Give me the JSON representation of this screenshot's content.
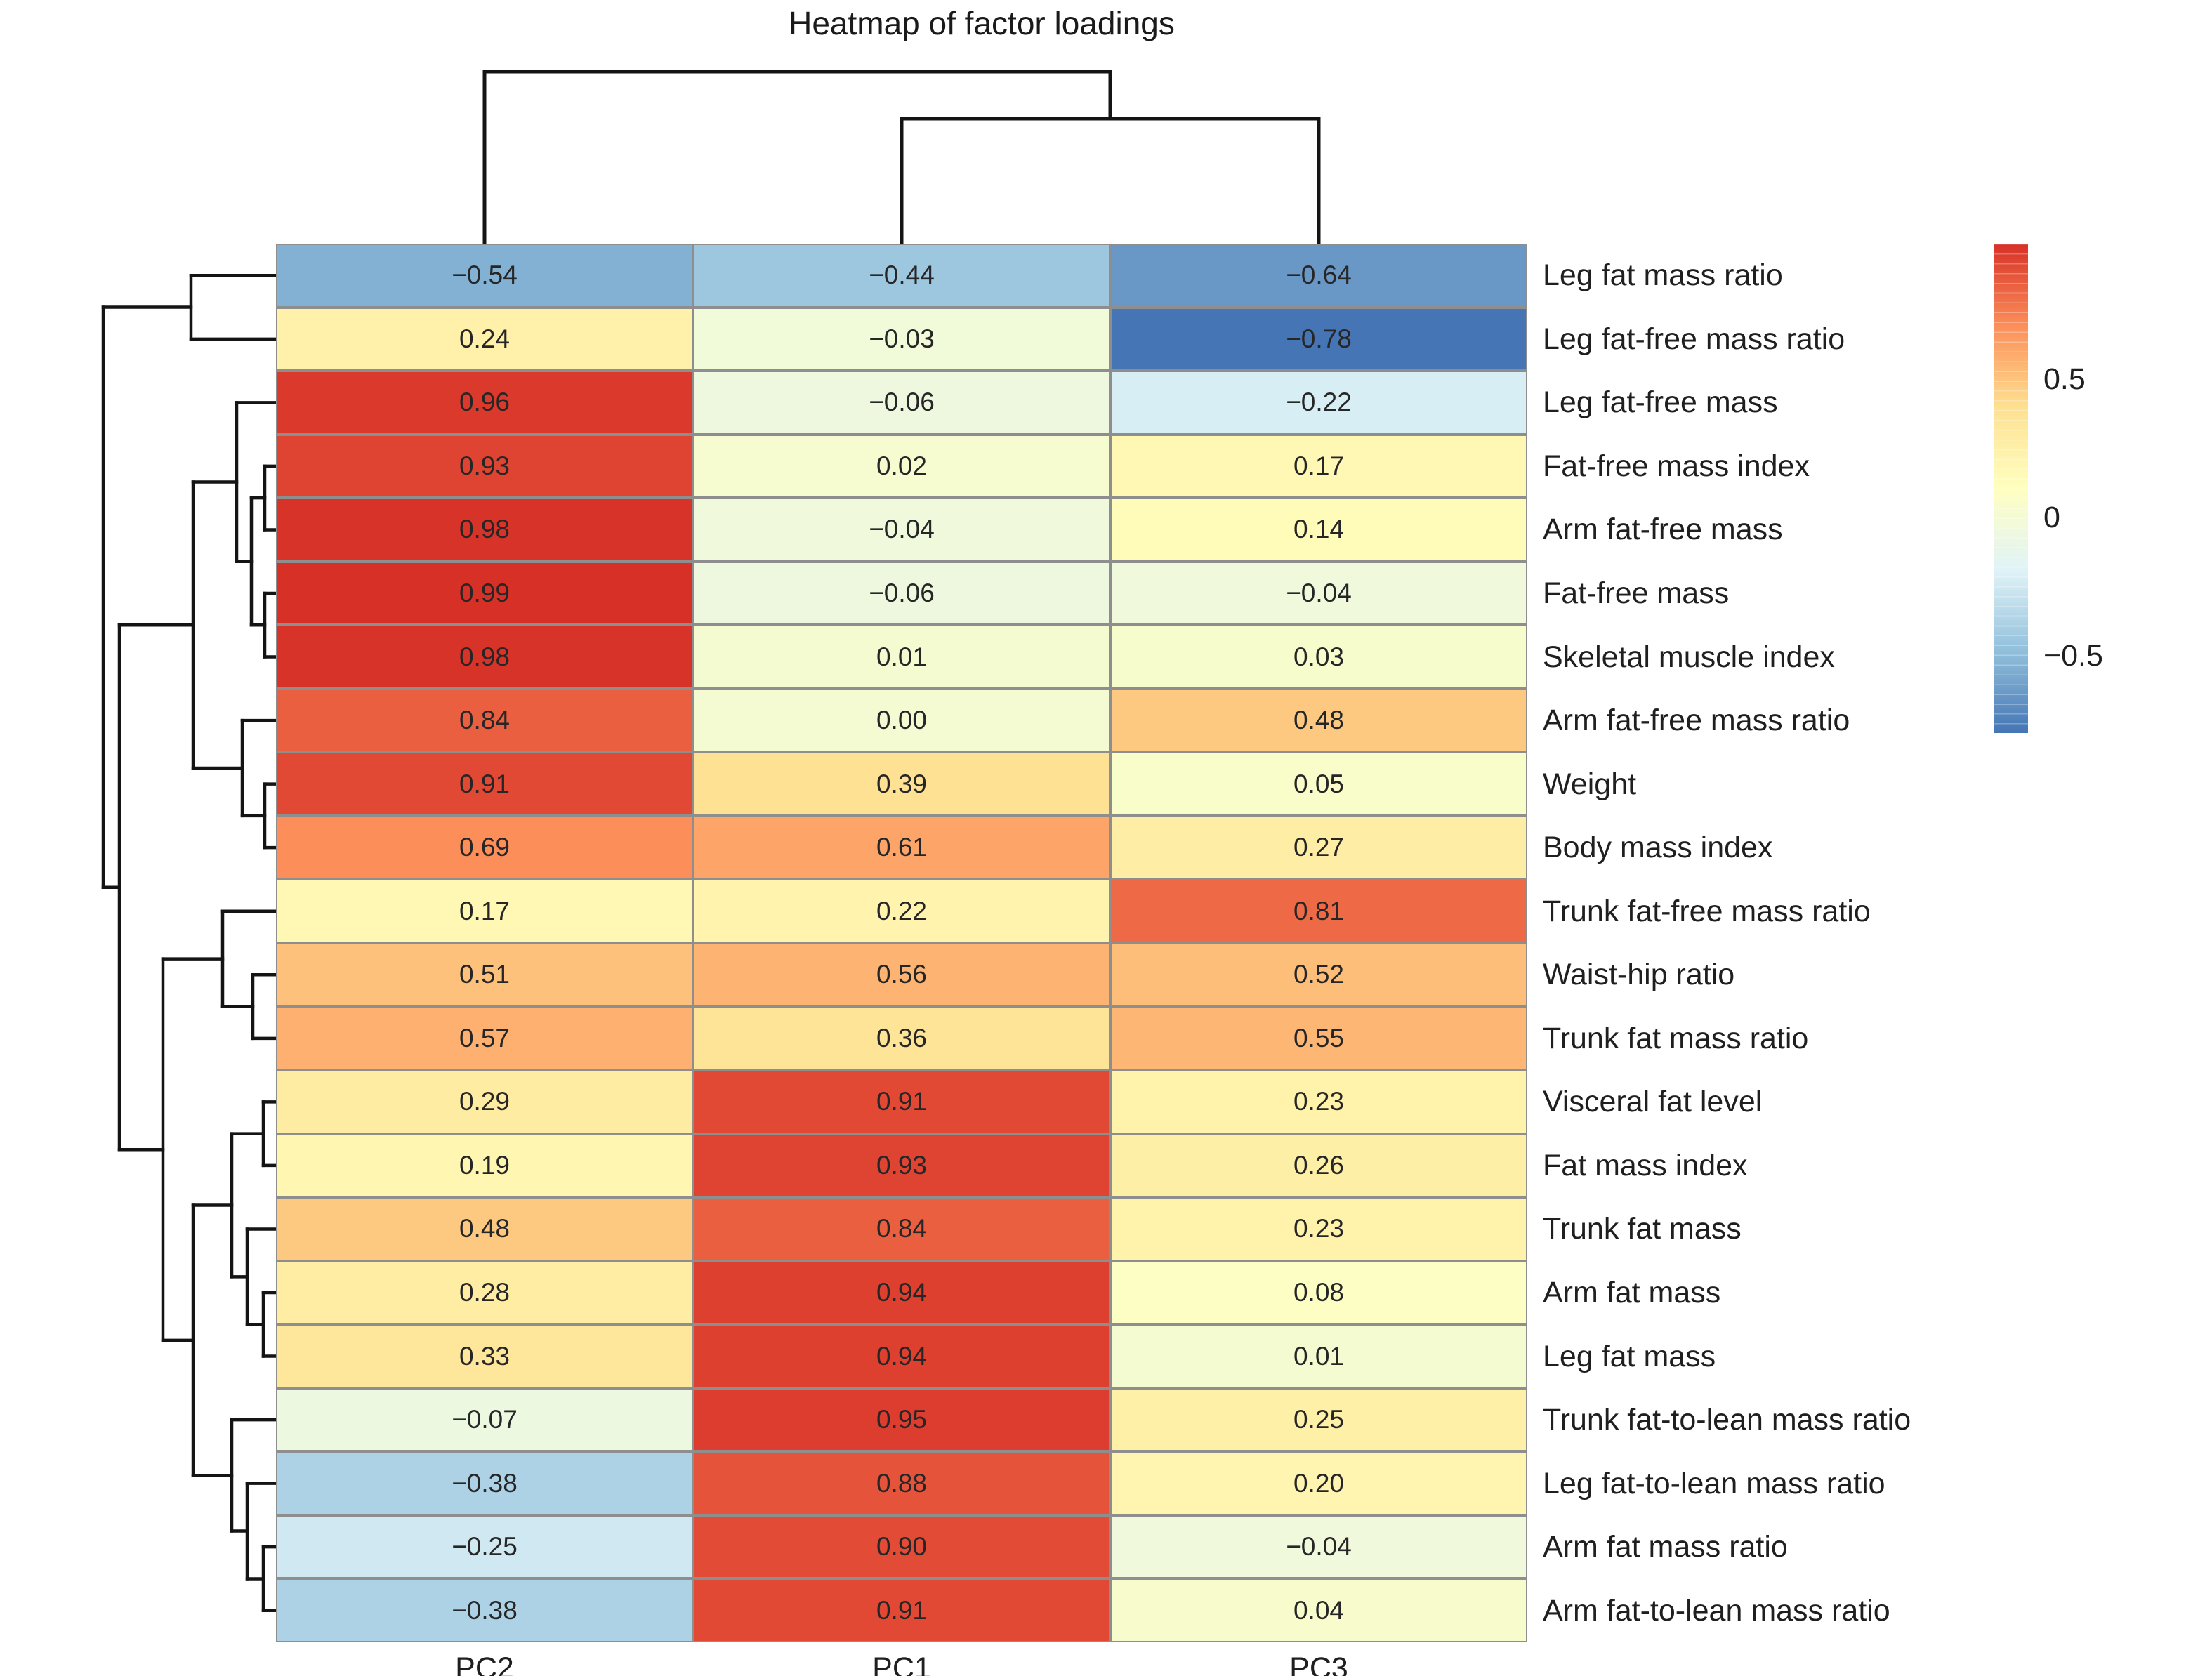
{
  "title": "Heatmap of factor loadings",
  "chart_data": {
    "type": "heatmap",
    "title": "Heatmap of factor loadings",
    "columns": [
      "PC2",
      "PC1",
      "PC3"
    ],
    "rows": [
      {
        "label": "Leg fat mass ratio",
        "values": [
          -0.54,
          -0.44,
          -0.64
        ]
      },
      {
        "label": "Leg fat-free mass ratio",
        "values": [
          0.24,
          -0.03,
          -0.78
        ]
      },
      {
        "label": "Leg fat-free mass",
        "values": [
          0.96,
          -0.06,
          -0.22
        ]
      },
      {
        "label": "Fat-free mass index",
        "values": [
          0.93,
          0.02,
          0.17
        ]
      },
      {
        "label": "Arm fat-free mass",
        "values": [
          0.98,
          -0.04,
          0.14
        ]
      },
      {
        "label": "Fat-free mass",
        "values": [
          0.99,
          -0.06,
          -0.04
        ]
      },
      {
        "label": "Skeletal muscle index",
        "values": [
          0.98,
          0.01,
          0.03
        ]
      },
      {
        "label": "Arm fat-free mass ratio",
        "values": [
          0.84,
          0.0,
          0.48
        ]
      },
      {
        "label": "Weight",
        "values": [
          0.91,
          0.39,
          0.05
        ]
      },
      {
        "label": "Body mass index",
        "values": [
          0.69,
          0.61,
          0.27
        ]
      },
      {
        "label": "Trunk fat-free mass ratio",
        "values": [
          0.17,
          0.22,
          0.81
        ]
      },
      {
        "label": "Waist-hip ratio",
        "values": [
          0.51,
          0.56,
          0.52
        ]
      },
      {
        "label": "Trunk fat mass ratio",
        "values": [
          0.57,
          0.36,
          0.55
        ]
      },
      {
        "label": "Visceral fat level",
        "values": [
          0.29,
          0.91,
          0.23
        ]
      },
      {
        "label": "Fat mass index",
        "values": [
          0.19,
          0.93,
          0.26
        ]
      },
      {
        "label": "Trunk fat mass",
        "values": [
          0.48,
          0.84,
          0.23
        ]
      },
      {
        "label": "Arm fat mass",
        "values": [
          0.28,
          0.94,
          0.08
        ]
      },
      {
        "label": "Leg fat mass",
        "values": [
          0.33,
          0.94,
          0.01
        ]
      },
      {
        "label": "Trunk fat-to-lean mass ratio",
        "values": [
          -0.07,
          0.95,
          0.25
        ]
      },
      {
        "label": "Leg fat-to-lean mass ratio",
        "values": [
          -0.38,
          0.88,
          0.2
        ]
      },
      {
        "label": "Arm fat mass ratio",
        "values": [
          -0.25,
          0.9,
          -0.04
        ]
      },
      {
        "label": "Arm fat-to-lean mass ratio",
        "values": [
          -0.38,
          0.91,
          0.04
        ]
      }
    ],
    "colormap": {
      "description": "RdYlBu reversed, 7-class interpolated (pheatmap default)",
      "palette": [
        "#4575b4",
        "#91bfdb",
        "#e0f3f8",
        "#ffffbf",
        "#fee090",
        "#fc8d59",
        "#d73027"
      ],
      "vmin": -0.78,
      "vmax": 0.99
    },
    "colorbar": {
      "position": "right",
      "ticks": [
        {
          "label": "0.5",
          "value": 0.5
        },
        {
          "label": "0",
          "value": 0
        },
        {
          "label": "−0.5",
          "value": -0.5
        }
      ]
    },
    "grid": {
      "cell_border_color": "#8e8e8e",
      "value_text_color": "#262626"
    },
    "col_dendrogram": {
      "d": 102,
      "c": [
        0,
        {
          "d": 169,
          "c": [
            1,
            2
          ]
        }
      ]
    },
    "row_dendrogram": {
      "d": 147,
      "c": [
        {
          "d": 272,
          "c": [
            0,
            1
          ]
        },
        {
          "d": 170,
          "c": [
            {
              "d": 275,
              "c": [
                {
                  "d": 337,
                  "c": [
                    2,
                    {
                      "d": 358,
                      "c": [
                        {
                          "d": 377,
                          "c": [
                            3,
                            4
                          ]
                        },
                        {
                          "d": 377,
                          "c": [
                            5,
                            6
                          ]
                        }
                      ]
                    }
                  ]
                },
                {
                  "d": 345,
                  "c": [
                    7,
                    {
                      "d": 377,
                      "c": [
                        8,
                        9
                      ]
                    }
                  ]
                }
              ]
            },
            {
              "d": 232,
              "c": [
                {
                  "d": 317,
                  "c": [
                    10,
                    {
                      "d": 360,
                      "c": [
                        11,
                        12
                      ]
                    }
                  ]
                },
                {
                  "d": 275,
                  "c": [
                    {
                      "d": 330,
                      "c": [
                        {
                          "d": 375,
                          "c": [
                            13,
                            14
                          ]
                        },
                        {
                          "d": 352,
                          "c": [
                            15,
                            {
                              "d": 375,
                              "c": [
                                16,
                                17
                              ]
                            }
                          ]
                        }
                      ]
                    },
                    {
                      "d": 330,
                      "c": [
                        18,
                        {
                          "d": 352,
                          "c": [
                            19,
                            {
                              "d": 375,
                              "c": [
                                20,
                                21
                              ]
                            }
                          ]
                        }
                      ]
                    }
                  ]
                }
              ]
            }
          ]
        }
      ]
    }
  }
}
